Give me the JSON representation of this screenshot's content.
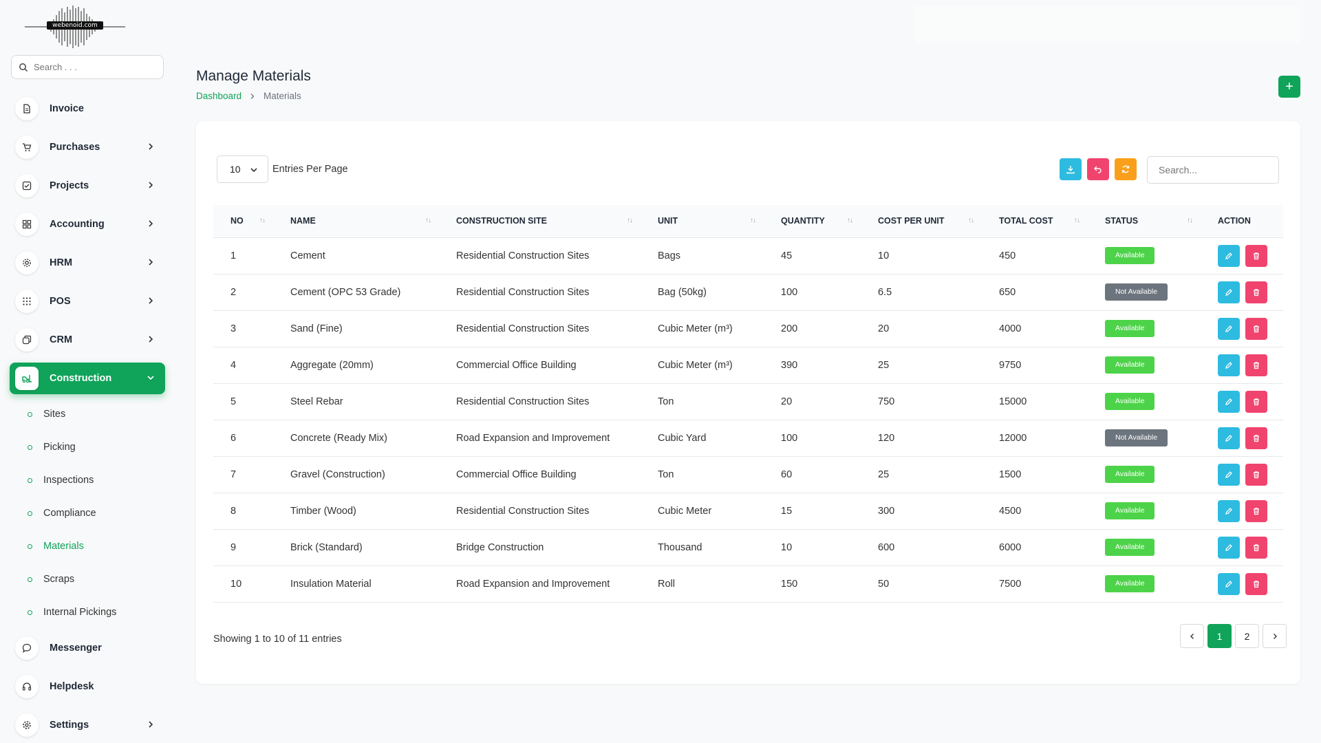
{
  "logo_text": "webenoid.com",
  "sidebar": {
    "search_placeholder": "Search . . .",
    "items": [
      {
        "label": "Invoice",
        "icon": "file-icon"
      },
      {
        "label": "Purchases",
        "icon": "cart-icon"
      },
      {
        "label": "Projects",
        "icon": "checkbox-icon"
      },
      {
        "label": "Accounting",
        "icon": "grid-icon"
      },
      {
        "label": "HRM",
        "icon": "cog-icon"
      },
      {
        "label": "POS",
        "icon": "dots-grid-icon"
      },
      {
        "label": "CRM",
        "icon": "layers-icon"
      },
      {
        "label": "Construction",
        "icon": "forklift-icon"
      },
      {
        "label": "Messenger",
        "icon": "chat-icon"
      },
      {
        "label": "Helpdesk",
        "icon": "headset-icon"
      },
      {
        "label": "Settings",
        "icon": "gear-icon"
      }
    ],
    "construction_sub": [
      "Sites",
      "Picking",
      "Inspections",
      "Compliance",
      "Materials",
      "Scraps",
      "Internal Pickings"
    ]
  },
  "header": {
    "title": "Manage Materials",
    "breadcrumb": [
      "Dashboard",
      "Materials"
    ],
    "add_label": "+"
  },
  "toolbar": {
    "entries_value": "10",
    "entries_label": "Entries Per Page",
    "search_placeholder": "Search..."
  },
  "table": {
    "columns": [
      "NO",
      "NAME",
      "CONSTRUCTION SITE",
      "UNIT",
      "QUANTITY",
      "COST PER UNIT",
      "TOTAL COST",
      "STATUS",
      "ACTION"
    ],
    "rows": [
      [
        "1",
        "Cement",
        "Residential Construction Sites",
        "Bags",
        "45",
        "10",
        "450",
        "Available"
      ],
      [
        "2",
        "Cement (OPC 53 Grade)",
        "Residential Construction Sites",
        "Bag (50kg)",
        "100",
        "6.5",
        "650",
        "Not Available"
      ],
      [
        "3",
        "Sand (Fine)",
        "Residential Construction Sites",
        "Cubic Meter (m³)",
        "200",
        "20",
        "4000",
        "Available"
      ],
      [
        "4",
        "Aggregate (20mm)",
        "Commercial Office Building",
        "Cubic Meter (m³)",
        "390",
        "25",
        "9750",
        "Available"
      ],
      [
        "5",
        "Steel Rebar",
        "Residential Construction Sites",
        "Ton",
        "20",
        "750",
        "15000",
        "Available"
      ],
      [
        "6",
        "Concrete (Ready Mix)",
        "Road Expansion and Improvement",
        "Cubic Yard",
        "100",
        "120",
        "12000",
        "Not Available"
      ],
      [
        "7",
        "Gravel (Construction)",
        "Commercial Office Building",
        "Ton",
        "60",
        "25",
        "1500",
        "Available"
      ],
      [
        "8",
        "Timber (Wood)",
        "Residential Construction Sites",
        "Cubic Meter",
        "15",
        "300",
        "4500",
        "Available"
      ],
      [
        "9",
        "Brick (Standard)",
        "Bridge Construction",
        "Thousand",
        "10",
        "600",
        "6000",
        "Available"
      ],
      [
        "10",
        "Insulation Material",
        "Road Expansion and Improvement",
        "Roll",
        "150",
        "50",
        "7500",
        "Available"
      ]
    ]
  },
  "footer": {
    "showing": "Showing 1 to 10 of 11 entries",
    "pages": [
      "1",
      "2"
    ]
  },
  "colors": {
    "primary": "#10a35a",
    "available": "#4dd349",
    "not_available": "#6c757d",
    "edit": "#2dbbe0",
    "delete": "#f0446e",
    "refresh": "#fa9f1b"
  }
}
